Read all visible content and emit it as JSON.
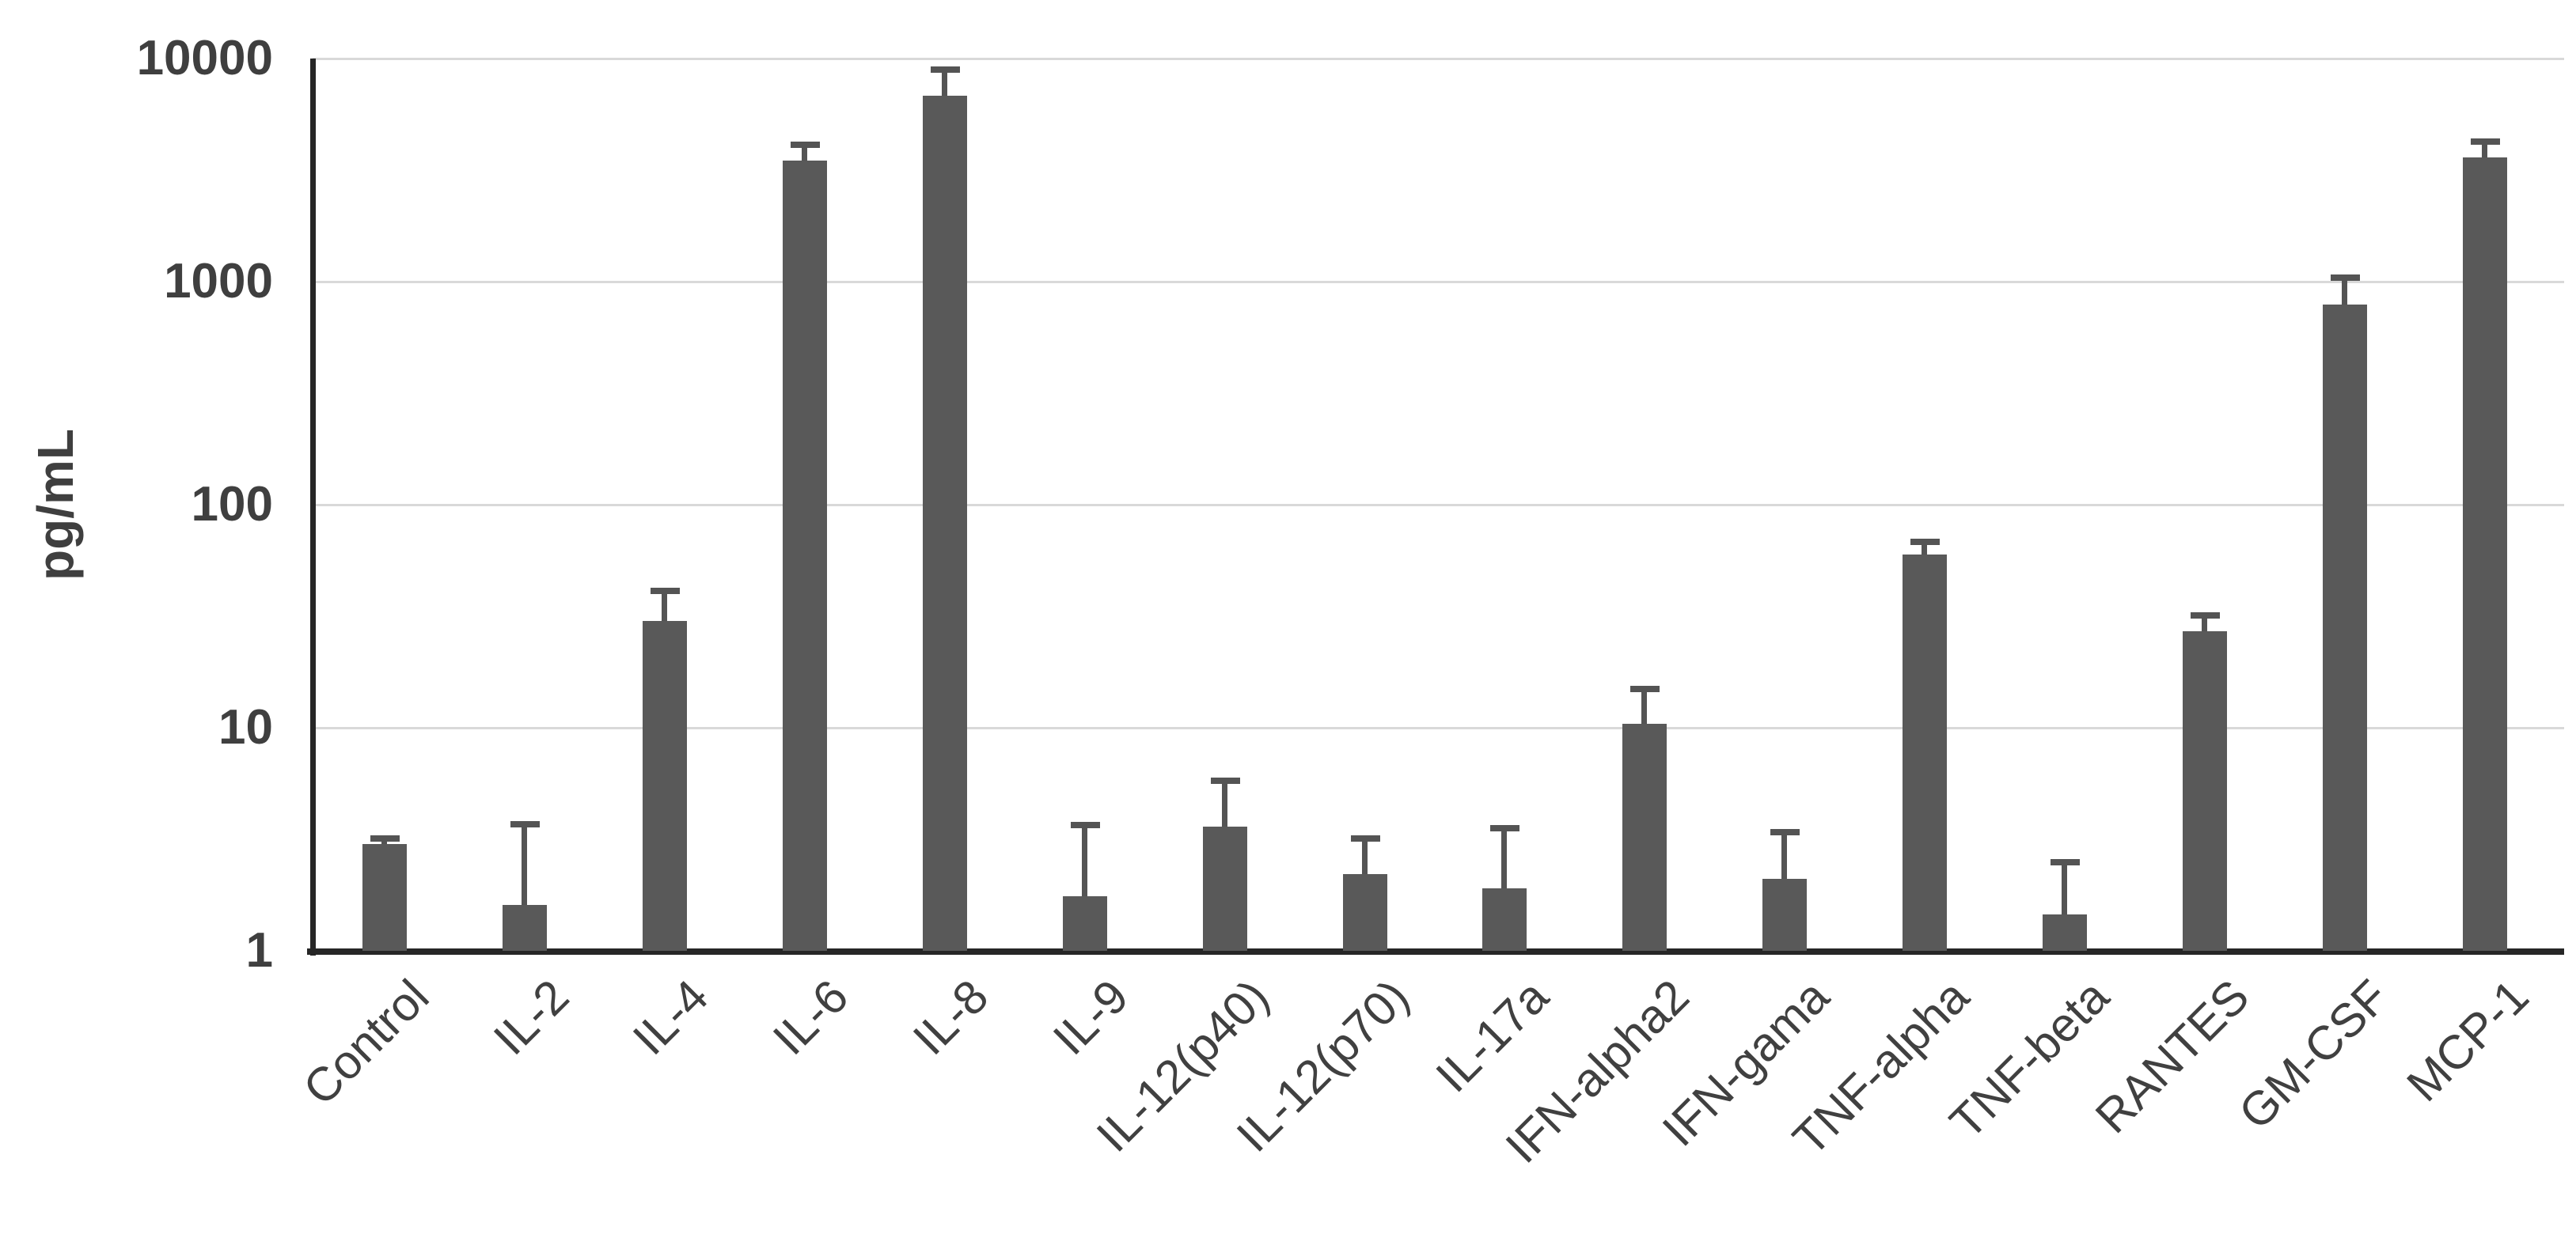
{
  "chart_data": {
    "type": "bar",
    "title": "",
    "ylabel": "pg/mL",
    "xlabel": "",
    "y_scale": "log",
    "ylim": [
      1,
      10000
    ],
    "y_ticks": [
      1,
      10,
      100,
      1000,
      10000
    ],
    "grid": true,
    "legend": false,
    "categories": [
      "Control",
      "IL-2",
      "IL-4",
      "IL-6",
      "IL-8",
      "IL-9",
      "IL-12(p40)",
      "IL-12(p70)",
      "IL-17a",
      "IFN-alpha2",
      "IFN-gama",
      "TNF-alpha",
      "TNF-beta",
      "RANTES",
      "GM-CSF",
      "MCP-1"
    ],
    "series": [
      {
        "values": [
          3,
          1.6,
          30,
          3500,
          6800,
          1.75,
          3.6,
          2.2,
          1.9,
          10.4,
          2.1,
          60,
          1.45,
          27,
          790,
          3600
        ],
        "error_bar_top": [
          3.2,
          3.7,
          41,
          4100,
          8900,
          3.65,
          5.8,
          3.2,
          3.55,
          14.9,
          3.4,
          68,
          2.5,
          32,
          1040,
          4240
        ]
      }
    ]
  },
  "colors": {
    "bar": "#595959",
    "error_bar": "#545454",
    "axis": "#262626",
    "gridline": "#d9d9d9",
    "tick_text": "#3f3f3f",
    "label_text": "#404040",
    "background": "#ffffff"
  }
}
